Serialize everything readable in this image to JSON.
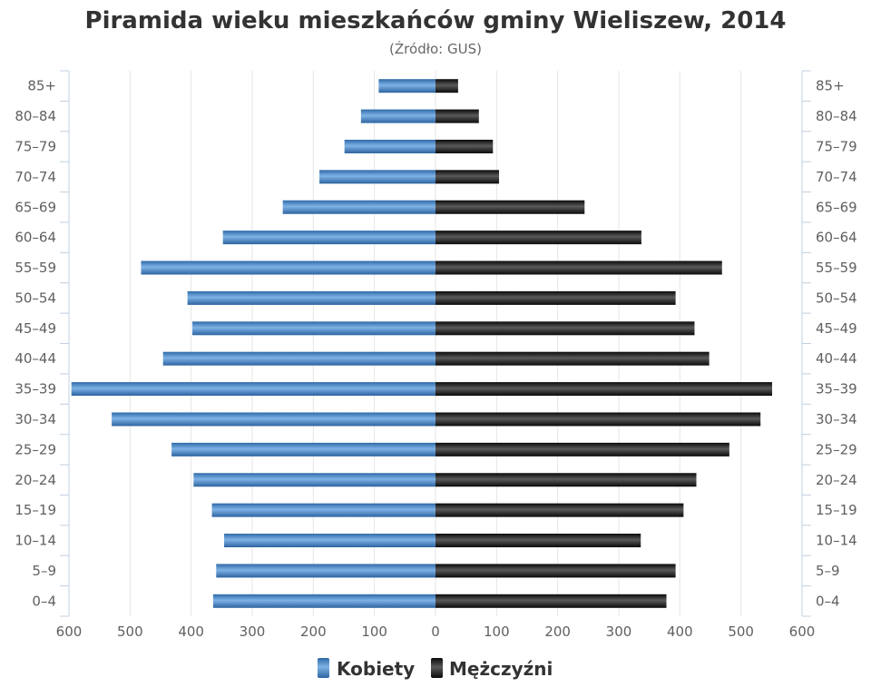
{
  "chart_data": {
    "type": "bar",
    "orientation": "horizontal-population-pyramid",
    "title": "Piramida wieku mieszkańców gminy Wieliszew, 2014",
    "subtitle": "(Źródło: GUS)",
    "categories": [
      "85+",
      "80–84",
      "75–79",
      "70–74",
      "65–69",
      "60–64",
      "55–59",
      "50–54",
      "45–49",
      "40–44",
      "35–39",
      "30–34",
      "25–29",
      "20–24",
      "15–19",
      "10–14",
      "5–9",
      "0–4"
    ],
    "series": [
      {
        "name": "Kobiety",
        "side": "left",
        "color": "#4a86c8",
        "values": [
          93,
          122,
          149,
          190,
          250,
          348,
          482,
          406,
          398,
          446,
          596,
          530,
          432,
          396,
          366,
          346,
          359,
          364
        ]
      },
      {
        "name": "Mężczyźni",
        "side": "right",
        "color": "#2a2a2a",
        "values": [
          37,
          71,
          94,
          104,
          244,
          337,
          469,
          393,
          424,
          448,
          551,
          532,
          481,
          427,
          406,
          336,
          393,
          378
        ]
      }
    ],
    "x_ticks": [
      "600",
      "500",
      "400",
      "300",
      "200",
      "100",
      "0",
      "100",
      "200",
      "300",
      "400",
      "500",
      "600"
    ],
    "xlim": [
      -600,
      600
    ],
    "grid": true,
    "legend_position": "bottom-center"
  }
}
